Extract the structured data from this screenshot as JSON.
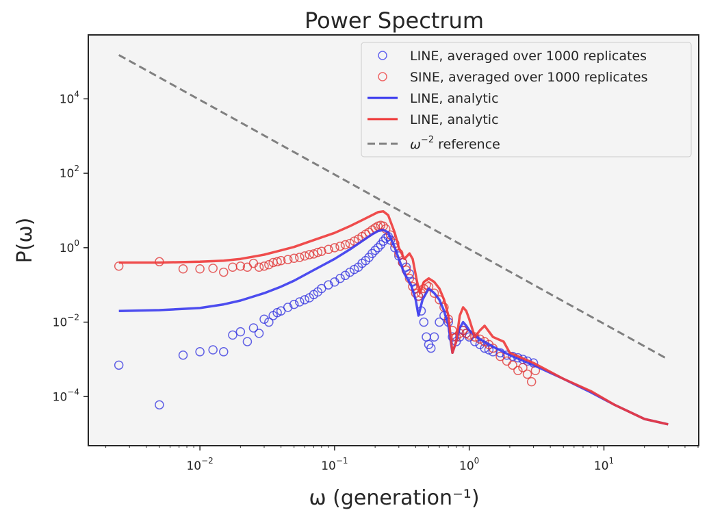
{
  "chart_data": {
    "type": "scatter",
    "title": "Power Spectrum",
    "xlabel": "ω (generation⁻¹)",
    "ylabel": "P(ω)",
    "x_scale": "log",
    "y_scale": "log",
    "xlim": [
      0.0015,
      50
    ],
    "ylim": [
      5e-06,
      500000
    ],
    "grid": false,
    "background": "#f4f4f4",
    "legend_position": "top-right",
    "x_ticks": [
      {
        "value": 0.01,
        "base": "10",
        "exp": "−2"
      },
      {
        "value": 0.1,
        "base": "10",
        "exp": "−1"
      },
      {
        "value": 1,
        "base": "10",
        "exp": "0"
      },
      {
        "value": 10,
        "base": "10",
        "exp": "1"
      }
    ],
    "y_ticks": [
      {
        "value": 0.0001,
        "base": "10",
        "exp": "−4"
      },
      {
        "value": 0.01,
        "base": "10",
        "exp": "−2"
      },
      {
        "value": 1,
        "base": "10",
        "exp": "0"
      },
      {
        "value": 100,
        "base": "10",
        "exp": "2"
      },
      {
        "value": 10000,
        "base": "10",
        "exp": "4"
      }
    ],
    "legend": [
      {
        "label": "LINE, averaged over 1000 replicates",
        "kind": "marker",
        "color": "#4444ee"
      },
      {
        "label": "SINE, averaged over 1000 replicates",
        "kind": "marker",
        "color": "#ee4444"
      },
      {
        "label": "LINE, analytic",
        "kind": "line",
        "color": "#3333ee"
      },
      {
        "label": "LINE, analytic",
        "kind": "line",
        "color": "#ee3333"
      },
      {
        "label_prefix": "ω",
        "label_exp": "−2",
        "label_suffix": " reference",
        "kind": "dashed",
        "color": "#808080"
      }
    ],
    "series": [
      {
        "name": "LINE, averaged over 1000 replicates",
        "style": "marker",
        "color": "#3030e0",
        "points": [
          [
            0.0025,
            0.0007
          ],
          [
            0.005,
            6e-05
          ],
          [
            0.0075,
            0.0013
          ],
          [
            0.01,
            0.0016
          ],
          [
            0.0125,
            0.0018
          ],
          [
            0.015,
            0.0016
          ],
          [
            0.0175,
            0.0045
          ],
          [
            0.02,
            0.0055
          ],
          [
            0.0225,
            0.003
          ],
          [
            0.025,
            0.007
          ],
          [
            0.0275,
            0.005
          ],
          [
            0.03,
            0.012
          ],
          [
            0.0325,
            0.01
          ],
          [
            0.035,
            0.015
          ],
          [
            0.0375,
            0.018
          ],
          [
            0.04,
            0.02
          ],
          [
            0.045,
            0.025
          ],
          [
            0.05,
            0.03
          ],
          [
            0.055,
            0.035
          ],
          [
            0.06,
            0.04
          ],
          [
            0.065,
            0.045
          ],
          [
            0.07,
            0.055
          ],
          [
            0.075,
            0.065
          ],
          [
            0.08,
            0.08
          ],
          [
            0.09,
            0.1
          ],
          [
            0.1,
            0.12
          ],
          [
            0.11,
            0.15
          ],
          [
            0.12,
            0.18
          ],
          [
            0.13,
            0.22
          ],
          [
            0.14,
            0.26
          ],
          [
            0.15,
            0.3
          ],
          [
            0.16,
            0.38
          ],
          [
            0.17,
            0.45
          ],
          [
            0.18,
            0.55
          ],
          [
            0.19,
            0.7
          ],
          [
            0.2,
            0.85
          ],
          [
            0.21,
            1.0
          ],
          [
            0.22,
            1.2
          ],
          [
            0.23,
            1.5
          ],
          [
            0.24,
            1.8
          ],
          [
            0.25,
            2.0
          ],
          [
            0.26,
            1.6
          ],
          [
            0.28,
            1.0
          ],
          [
            0.3,
            0.6
          ],
          [
            0.32,
            0.4
          ],
          [
            0.34,
            0.3
          ],
          [
            0.36,
            0.2
          ],
          [
            0.38,
            0.12
          ],
          [
            0.4,
            0.08
          ],
          [
            0.42,
            0.05
          ],
          [
            0.44,
            0.02
          ],
          [
            0.46,
            0.01
          ],
          [
            0.48,
            0.004
          ],
          [
            0.5,
            0.0025
          ],
          [
            0.52,
            0.002
          ],
          [
            0.55,
            0.004
          ],
          [
            0.6,
            0.01
          ],
          [
            0.65,
            0.015
          ],
          [
            0.7,
            0.01
          ],
          [
            0.75,
            0.004
          ],
          [
            0.8,
            0.003
          ],
          [
            0.85,
            0.004
          ],
          [
            0.9,
            0.006
          ],
          [
            0.95,
            0.005
          ],
          [
            1.0,
            0.004
          ],
          [
            1.1,
            0.003
          ],
          [
            1.2,
            0.0025
          ],
          [
            1.3,
            0.002
          ],
          [
            1.4,
            0.0018
          ],
          [
            1.5,
            0.0016
          ],
          [
            1.7,
            0.0015
          ],
          [
            1.9,
            0.0013
          ],
          [
            2.1,
            0.0012
          ],
          [
            2.3,
            0.0011
          ],
          [
            2.5,
            0.001
          ],
          [
            2.7,
            0.0009
          ],
          [
            3.0,
            0.0008
          ]
        ]
      },
      {
        "name": "SINE, averaged over 1000 replicates",
        "style": "marker",
        "color": "#e03030",
        "points": [
          [
            0.0025,
            0.32
          ],
          [
            0.005,
            0.42
          ],
          [
            0.0075,
            0.27
          ],
          [
            0.01,
            0.27
          ],
          [
            0.0125,
            0.28
          ],
          [
            0.015,
            0.22
          ],
          [
            0.0175,
            0.3
          ],
          [
            0.02,
            0.32
          ],
          [
            0.0225,
            0.3
          ],
          [
            0.025,
            0.38
          ],
          [
            0.0275,
            0.3
          ],
          [
            0.03,
            0.32
          ],
          [
            0.0325,
            0.35
          ],
          [
            0.035,
            0.4
          ],
          [
            0.0375,
            0.42
          ],
          [
            0.04,
            0.45
          ],
          [
            0.045,
            0.48
          ],
          [
            0.05,
            0.52
          ],
          [
            0.055,
            0.55
          ],
          [
            0.06,
            0.6
          ],
          [
            0.065,
            0.65
          ],
          [
            0.07,
            0.68
          ],
          [
            0.075,
            0.75
          ],
          [
            0.08,
            0.8
          ],
          [
            0.09,
            0.9
          ],
          [
            0.1,
            1.0
          ],
          [
            0.11,
            1.1
          ],
          [
            0.12,
            1.2
          ],
          [
            0.13,
            1.3
          ],
          [
            0.14,
            1.5
          ],
          [
            0.15,
            1.7
          ],
          [
            0.16,
            2.0
          ],
          [
            0.17,
            2.3
          ],
          [
            0.18,
            2.6
          ],
          [
            0.19,
            3.0
          ],
          [
            0.2,
            3.4
          ],
          [
            0.21,
            3.8
          ],
          [
            0.22,
            4.0
          ],
          [
            0.23,
            3.8
          ],
          [
            0.24,
            3.2
          ],
          [
            0.26,
            2.2
          ],
          [
            0.28,
            1.3
          ],
          [
            0.3,
            0.7
          ],
          [
            0.32,
            0.4
          ],
          [
            0.34,
            0.25
          ],
          [
            0.36,
            0.15
          ],
          [
            0.38,
            0.09
          ],
          [
            0.4,
            0.06
          ],
          [
            0.42,
            0.05
          ],
          [
            0.44,
            0.06
          ],
          [
            0.46,
            0.08
          ],
          [
            0.48,
            0.1
          ],
          [
            0.5,
            0.09
          ],
          [
            0.55,
            0.06
          ],
          [
            0.6,
            0.04
          ],
          [
            0.65,
            0.025
          ],
          [
            0.7,
            0.012
          ],
          [
            0.75,
            0.006
          ],
          [
            0.8,
            0.004
          ],
          [
            0.85,
            0.005
          ],
          [
            0.9,
            0.006
          ],
          [
            0.95,
            0.005
          ],
          [
            1.0,
            0.0045
          ],
          [
            1.1,
            0.004
          ],
          [
            1.2,
            0.0035
          ],
          [
            1.3,
            0.003
          ],
          [
            1.4,
            0.0025
          ],
          [
            1.5,
            0.002
          ],
          [
            1.7,
            0.0012
          ],
          [
            1.9,
            0.0009
          ],
          [
            2.1,
            0.0007
          ],
          [
            2.3,
            0.0005
          ],
          [
            2.5,
            0.0006
          ],
          [
            2.7,
            0.0004
          ],
          [
            2.9,
            0.00025
          ],
          [
            3.1,
            0.0005
          ]
        ]
      },
      {
        "name": "LINE, analytic",
        "style": "line",
        "color": "#3a3aee",
        "points": [
          [
            0.0025,
            0.02
          ],
          [
            0.005,
            0.021
          ],
          [
            0.01,
            0.024
          ],
          [
            0.015,
            0.03
          ],
          [
            0.02,
            0.038
          ],
          [
            0.03,
            0.06
          ],
          [
            0.04,
            0.09
          ],
          [
            0.05,
            0.13
          ],
          [
            0.07,
            0.25
          ],
          [
            0.1,
            0.5
          ],
          [
            0.13,
            0.9
          ],
          [
            0.16,
            1.5
          ],
          [
            0.19,
            2.3
          ],
          [
            0.21,
            2.8
          ],
          [
            0.23,
            3.0
          ],
          [
            0.25,
            2.6
          ],
          [
            0.28,
            1.0
          ],
          [
            0.3,
            0.5
          ],
          [
            0.33,
            0.2
          ],
          [
            0.37,
            0.1
          ],
          [
            0.4,
            0.04
          ],
          [
            0.42,
            0.015
          ],
          [
            0.45,
            0.04
          ],
          [
            0.5,
            0.08
          ],
          [
            0.55,
            0.06
          ],
          [
            0.6,
            0.04
          ],
          [
            0.65,
            0.02
          ],
          [
            0.7,
            0.008
          ],
          [
            0.75,
            0.0015
          ],
          [
            0.8,
            0.003
          ],
          [
            0.85,
            0.007
          ],
          [
            0.9,
            0.01
          ],
          [
            0.95,
            0.008
          ],
          [
            1.0,
            0.006
          ],
          [
            1.2,
            0.0035
          ],
          [
            1.5,
            0.0022
          ],
          [
            2.0,
            0.0013
          ],
          [
            3.0,
            0.0007
          ],
          [
            5.0,
            0.0003
          ],
          [
            8.0,
            0.00013
          ],
          [
            12.0,
            6e-05
          ],
          [
            20.0,
            2.5e-05
          ],
          [
            30.0,
            1.8e-05
          ]
        ]
      },
      {
        "name": "LINE, analytic",
        "style": "line",
        "color": "#ee3a3a",
        "points": [
          [
            0.0025,
            0.4
          ],
          [
            0.005,
            0.4
          ],
          [
            0.01,
            0.42
          ],
          [
            0.015,
            0.45
          ],
          [
            0.02,
            0.5
          ],
          [
            0.03,
            0.65
          ],
          [
            0.04,
            0.85
          ],
          [
            0.05,
            1.05
          ],
          [
            0.07,
            1.6
          ],
          [
            0.1,
            2.5
          ],
          [
            0.13,
            3.8
          ],
          [
            0.16,
            5.5
          ],
          [
            0.19,
            7.5
          ],
          [
            0.21,
            9.0
          ],
          [
            0.23,
            9.5
          ],
          [
            0.25,
            7.5
          ],
          [
            0.28,
            2.5
          ],
          [
            0.3,
            1.0
          ],
          [
            0.33,
            0.5
          ],
          [
            0.36,
            0.7
          ],
          [
            0.38,
            0.5
          ],
          [
            0.41,
            0.12
          ],
          [
            0.43,
            0.06
          ],
          [
            0.46,
            0.12
          ],
          [
            0.5,
            0.15
          ],
          [
            0.55,
            0.12
          ],
          [
            0.6,
            0.08
          ],
          [
            0.65,
            0.04
          ],
          [
            0.7,
            0.015
          ],
          [
            0.75,
            0.0015
          ],
          [
            0.8,
            0.003
          ],
          [
            0.85,
            0.015
          ],
          [
            0.9,
            0.025
          ],
          [
            0.95,
            0.02
          ],
          [
            1.0,
            0.012
          ],
          [
            1.1,
            0.004
          ],
          [
            1.2,
            0.006
          ],
          [
            1.3,
            0.008
          ],
          [
            1.5,
            0.004
          ],
          [
            1.8,
            0.003
          ],
          [
            2.0,
            0.0015
          ],
          [
            3.0,
            0.0008
          ],
          [
            5.0,
            0.0003
          ],
          [
            8.0,
            0.00014
          ],
          [
            12.0,
            6e-05
          ],
          [
            20.0,
            2.5e-05
          ],
          [
            30.0,
            1.8e-05
          ]
        ]
      },
      {
        "name": "reference",
        "style": "dashed",
        "color": "#808080",
        "points": [
          [
            0.0025,
            150000
          ],
          [
            30.0,
            0.001
          ]
        ]
      }
    ]
  }
}
